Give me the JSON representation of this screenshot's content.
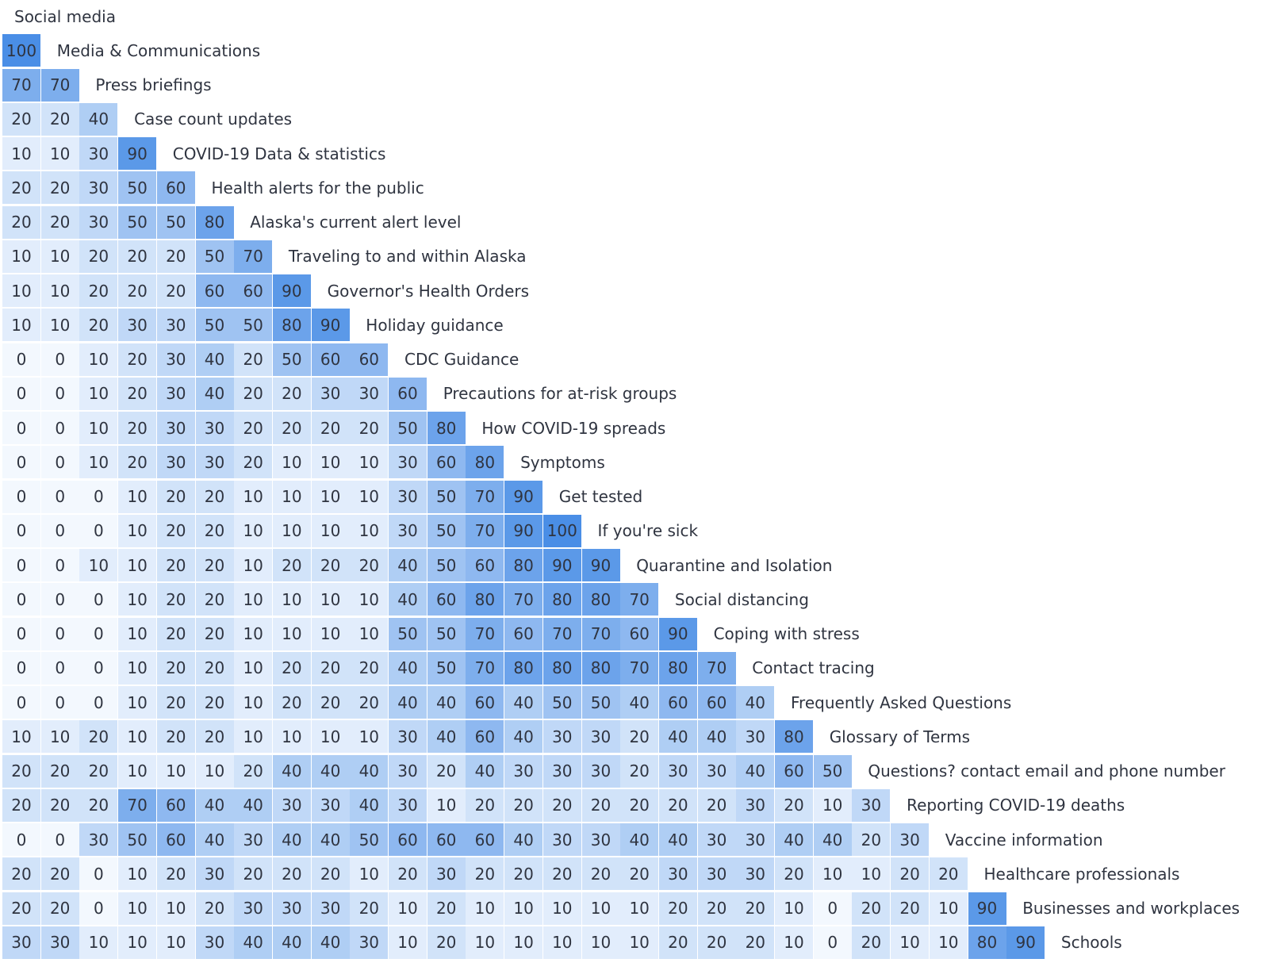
{
  "chart_data": {
    "type": "heatmap",
    "title": "",
    "orientation": "lower-triangular correlation-style matrix; each row's label sits to the right of its last cell",
    "labels": [
      "Social media",
      "Media & Communications",
      "Press briefings",
      "Case count updates",
      "COVID-19 Data & statistics",
      "Health alerts for the public",
      "Alaska's current alert level",
      "Traveling to and within Alaska",
      "Governor's Health Orders",
      "Holiday guidance",
      "CDC Guidance",
      "Precautions for at-risk groups",
      "How COVID-19 spreads",
      "Symptoms",
      "Get tested",
      "If you're sick",
      "Quarantine and Isolation",
      "Social distancing",
      "Coping with stress",
      "Contact tracing",
      "Frequently Asked Questions",
      "Glossary of Terms",
      "Questions? contact email and phone number",
      "Reporting COVID-19 deaths",
      "Vaccine information",
      "Healthcare professionals",
      "Businesses and workplaces",
      "Schools"
    ],
    "values": [
      [],
      [
        100
      ],
      [
        70,
        70
      ],
      [
        20,
        20,
        40
      ],
      [
        10,
        10,
        30,
        90
      ],
      [
        20,
        20,
        30,
        50,
        60
      ],
      [
        20,
        20,
        30,
        50,
        50,
        80
      ],
      [
        10,
        10,
        20,
        20,
        20,
        50,
        70
      ],
      [
        10,
        10,
        20,
        20,
        20,
        60,
        60,
        90
      ],
      [
        10,
        10,
        20,
        30,
        30,
        50,
        50,
        80,
        90
      ],
      [
        0,
        0,
        10,
        20,
        30,
        40,
        20,
        50,
        60,
        60
      ],
      [
        0,
        0,
        10,
        20,
        30,
        40,
        20,
        20,
        30,
        30,
        60
      ],
      [
        0,
        0,
        10,
        20,
        30,
        30,
        20,
        20,
        20,
        20,
        50,
        80
      ],
      [
        0,
        0,
        10,
        20,
        30,
        30,
        20,
        10,
        10,
        10,
        30,
        60,
        80
      ],
      [
        0,
        0,
        0,
        10,
        20,
        20,
        10,
        10,
        10,
        10,
        30,
        50,
        70,
        90
      ],
      [
        0,
        0,
        0,
        10,
        20,
        20,
        10,
        10,
        10,
        10,
        30,
        50,
        70,
        90,
        100
      ],
      [
        0,
        0,
        10,
        10,
        20,
        20,
        10,
        20,
        20,
        20,
        40,
        50,
        60,
        80,
        90,
        90
      ],
      [
        0,
        0,
        0,
        10,
        20,
        20,
        10,
        10,
        10,
        10,
        40,
        60,
        80,
        70,
        80,
        80,
        70
      ],
      [
        0,
        0,
        0,
        10,
        20,
        20,
        10,
        10,
        10,
        10,
        50,
        50,
        70,
        60,
        70,
        70,
        60,
        90
      ],
      [
        0,
        0,
        0,
        10,
        20,
        20,
        10,
        20,
        20,
        20,
        40,
        50,
        70,
        80,
        80,
        80,
        70,
        80,
        70
      ],
      [
        0,
        0,
        0,
        10,
        20,
        20,
        10,
        20,
        20,
        20,
        40,
        40,
        60,
        40,
        50,
        50,
        40,
        60,
        60,
        40
      ],
      [
        10,
        10,
        20,
        10,
        20,
        20,
        10,
        10,
        10,
        10,
        30,
        40,
        60,
        40,
        30,
        30,
        20,
        40,
        40,
        30,
        80
      ],
      [
        20,
        20,
        20,
        10,
        10,
        10,
        20,
        40,
        40,
        40,
        30,
        20,
        40,
        30,
        30,
        30,
        20,
        30,
        30,
        40,
        60,
        50
      ],
      [
        20,
        20,
        20,
        70,
        60,
        40,
        40,
        30,
        30,
        40,
        30,
        10,
        20,
        20,
        20,
        20,
        20,
        20,
        20,
        30,
        20,
        10,
        30
      ],
      [
        0,
        0,
        30,
        50,
        60,
        40,
        30,
        40,
        40,
        50,
        60,
        60,
        60,
        40,
        30,
        30,
        40,
        40,
        30,
        30,
        40,
        40,
        20,
        30
      ],
      [
        20,
        20,
        0,
        10,
        20,
        30,
        20,
        20,
        20,
        10,
        20,
        30,
        20,
        20,
        20,
        20,
        20,
        30,
        30,
        30,
        20,
        10,
        10,
        20,
        20
      ],
      [
        20,
        20,
        0,
        10,
        10,
        20,
        30,
        30,
        30,
        20,
        10,
        20,
        10,
        10,
        10,
        10,
        10,
        20,
        20,
        20,
        10,
        0,
        20,
        20,
        10,
        90
      ],
      [
        30,
        30,
        10,
        10,
        10,
        30,
        40,
        40,
        40,
        30,
        10,
        20,
        10,
        10,
        10,
        10,
        10,
        20,
        20,
        20,
        10,
        0,
        20,
        10,
        10,
        80,
        90
      ]
    ],
    "value_range": [
      0,
      100
    ],
    "color_scale": {
      "low": "#f3f8fe",
      "high": "#4a8ee6"
    }
  }
}
